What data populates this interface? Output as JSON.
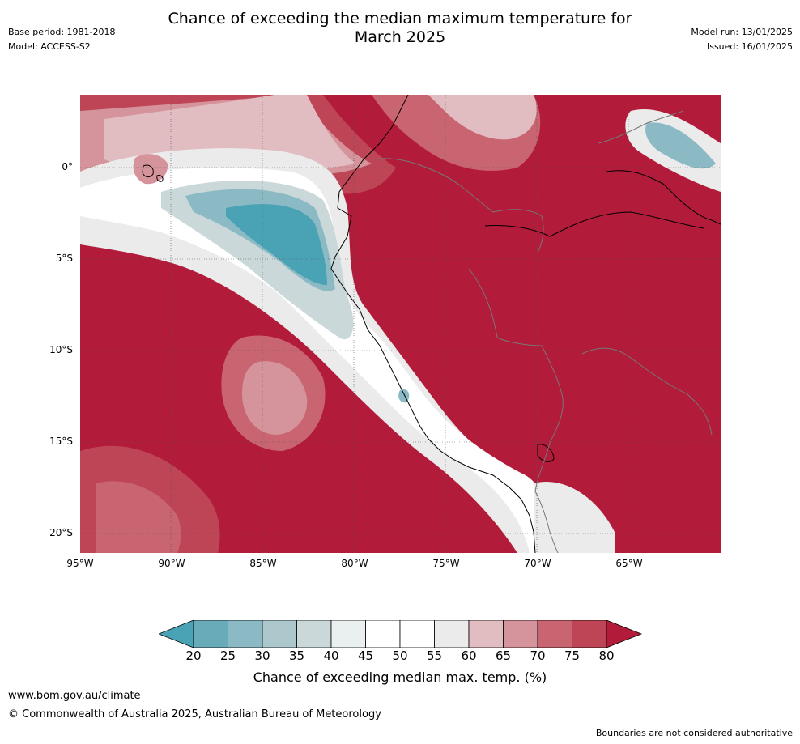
{
  "title_line1": "Chance of exceeding the median maximum temperature for",
  "title_line2": "March 2025",
  "base_period": "Base period: 1981-2018",
  "model": "Model: ACCESS-S2",
  "model_run": "Model run: 13/01/2025",
  "issued": "Issued: 16/01/2025",
  "lat_ticks": [
    "0°",
    "5°S",
    "10°S",
    "15°S",
    "20°S"
  ],
  "lon_ticks": [
    "95°W",
    "90°W",
    "85°W",
    "80°W",
    "75°W",
    "70°W",
    "65°W"
  ],
  "colorbar": {
    "labels": [
      "20",
      "25",
      "30",
      "35",
      "40",
      "45",
      "50",
      "55",
      "60",
      "65",
      "70",
      "75",
      "80"
    ],
    "colors": [
      "#4aa3b5",
      "#6aabb9",
      "#8bbac4",
      "#acc8cd",
      "#cbd8da",
      "#eaeff0",
      "#ffffff",
      "#ffffff",
      "#ebebeb",
      "#e1bcc1",
      "#d5939b",
      "#c96570",
      "#bd4555",
      "#b31b3a"
    ],
    "title": "Chance of exceeding median max. temp. (%)"
  },
  "map_colors": {
    "hot": "#b31b3a",
    "warm75": "#bd4555",
    "warm70": "#c96570",
    "warm65": "#d5939b",
    "warm60": "#e1bcc1",
    "neutral": "#ebebeb",
    "white": "#ffffff",
    "cool40": "#cbd8da",
    "cool35": "#acc8cd",
    "cool30": "#8bbac4",
    "cool25": "#6aabb9",
    "cool20": "#4aa3b5"
  },
  "footer_url": "www.bom.gov.au/climate",
  "footer_copyright": "© Commonwealth of Australia 2025, Australian Bureau of Meteorology",
  "disclaimer": "Boundaries are not considered authoritative"
}
